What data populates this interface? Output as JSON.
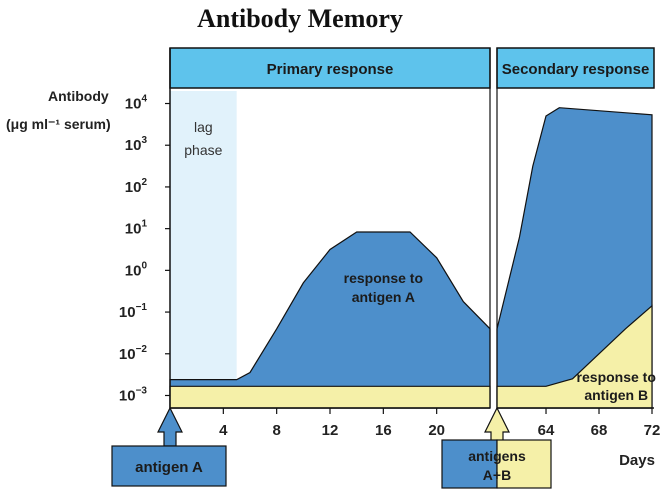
{
  "title": "Antibody Memory",
  "ylabel_line1": "Antibody",
  "ylabel_line2": "(μg ml⁻¹ serum)",
  "xlabel": "Days",
  "phase_primary": "Primary response",
  "phase_secondary": "Secondary response",
  "lag_label_1": "lag",
  "lag_label_2": "phase",
  "label_resp_a_1": "response to",
  "label_resp_a_2": "antigen A",
  "label_resp_b_1": "response to",
  "label_resp_b_2": "antigen B",
  "arrow1_label": "antigen A",
  "arrow2_label_1": "antigens",
  "arrow2_label_2": "A+B",
  "colors": {
    "blue": "#4d8fcb",
    "yellow": "#f5f0a8",
    "header": "#5ec3ec",
    "lag": "#e1f2fb",
    "axis": "#111111"
  },
  "chart_data": {
    "type": "area",
    "x_ticks_primary": [
      4,
      8,
      12,
      16,
      20
    ],
    "x_ticks_secondary": [
      64,
      68,
      72
    ],
    "y_tick_exponents": [
      4,
      3,
      2,
      1,
      0,
      -1,
      -2,
      -3
    ],
    "ylim_log10": [
      -3.3,
      4.3
    ],
    "xlim_primary": [
      0,
      24
    ],
    "xlim_secondary": [
      60.3,
      72
    ],
    "lag_phase_days": [
      0,
      5
    ],
    "series": [
      {
        "name": "response to antigen A",
        "primary": [
          [
            0,
            -2.62
          ],
          [
            5,
            -2.62
          ],
          [
            6,
            -2.45
          ],
          [
            8,
            -1.4
          ],
          [
            10,
            -0.3
          ],
          [
            12,
            0.5
          ],
          [
            14,
            0.92
          ],
          [
            18,
            0.92
          ],
          [
            20,
            0.3
          ],
          [
            22,
            -0.75
          ],
          [
            24,
            -1.4
          ]
        ],
        "secondary": [
          [
            60.3,
            -1.4
          ],
          [
            62,
            0.8
          ],
          [
            63,
            2.5
          ],
          [
            64,
            3.7
          ],
          [
            65,
            3.9
          ],
          [
            72,
            3.73
          ]
        ]
      },
      {
        "name": "response to antigen B",
        "primary": [
          [
            0,
            -2.78
          ],
          [
            24,
            -2.78
          ]
        ],
        "secondary": [
          [
            60.3,
            -2.78
          ],
          [
            64,
            -2.78
          ],
          [
            66,
            -2.6
          ],
          [
            68,
            -2.0
          ],
          [
            70,
            -1.4
          ],
          [
            72,
            -0.85
          ]
        ]
      }
    ]
  }
}
